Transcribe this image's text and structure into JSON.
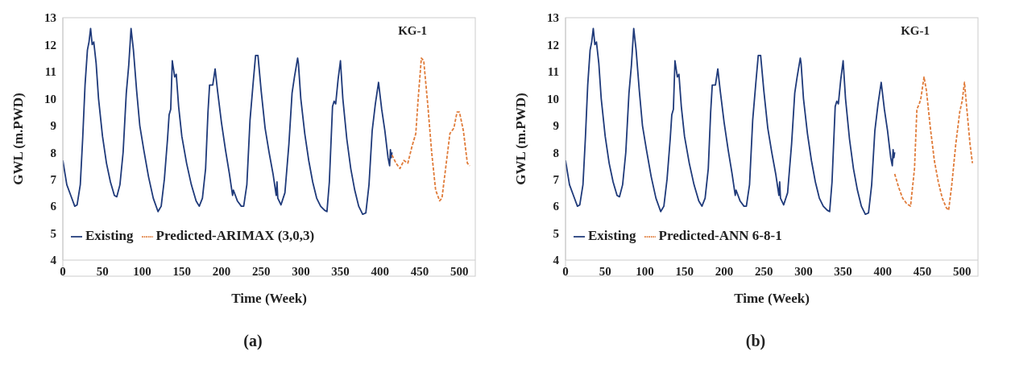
{
  "chart_data": [
    {
      "type": "line",
      "xlabel": "Time (Week)",
      "ylabel": "GWL (m.PWD)",
      "annotations": [
        "KG-1",
        "(a)"
      ],
      "xlim": [
        0,
        520
      ],
      "xticks": [
        0,
        50,
        100,
        150,
        200,
        250,
        300,
        350,
        400,
        450,
        500
      ],
      "ylim": [
        4,
        13
      ],
      "yticks": [
        4,
        5,
        6,
        7,
        8,
        9,
        10,
        11,
        12,
        13
      ],
      "legend": "bottom left",
      "series": [
        {
          "name": "Existing",
          "color": "#1f3a7a",
          "line_style": "solid",
          "x": [
            0,
            5,
            10,
            15,
            18,
            22,
            25,
            28,
            31,
            33,
            35,
            37,
            39,
            42,
            45,
            50,
            55,
            60,
            65,
            68,
            72,
            76,
            80,
            83,
            86,
            89,
            93,
            97,
            102,
            108,
            114,
            120,
            124,
            128,
            132,
            134,
            136,
            138,
            140,
            141,
            143,
            146,
            150,
            156,
            162,
            168,
            172,
            176,
            180,
            183,
            185,
            189,
            192,
            195,
            200,
            205,
            210,
            213,
            214,
            215,
            220,
            225,
            228,
            232,
            236,
            240,
            243,
            246,
            250,
            255,
            260,
            265,
            269,
            270,
            271,
            275,
            280,
            285,
            289,
            292,
            296,
            297,
            300,
            305,
            310,
            315,
            320,
            325,
            330,
            333,
            336,
            340,
            342,
            344,
            347,
            350,
            353,
            358,
            363,
            368,
            373,
            378,
            382,
            386,
            390,
            394,
            398,
            402,
            406,
            410,
            412,
            413,
            414,
            415
          ],
          "values": [
            7.7,
            6.8,
            6.4,
            6.0,
            6.05,
            6.8,
            8.5,
            10.5,
            11.8,
            12.1,
            12.6,
            12.0,
            12.1,
            11.3,
            10.0,
            8.6,
            7.6,
            6.9,
            6.4,
            6.35,
            6.8,
            8.0,
            10.2,
            11.2,
            12.6,
            11.8,
            10.3,
            9.0,
            8.1,
            7.1,
            6.3,
            5.8,
            6.0,
            7.0,
            8.5,
            9.4,
            9.6,
            11.4,
            11.0,
            10.8,
            10.9,
            9.7,
            8.6,
            7.6,
            6.8,
            6.2,
            6.0,
            6.3,
            7.4,
            9.5,
            10.5,
            10.5,
            11.1,
            10.3,
            9.1,
            8.1,
            7.2,
            6.6,
            6.4,
            6.6,
            6.2,
            6.0,
            6.0,
            6.8,
            9.2,
            10.6,
            11.6,
            11.6,
            10.3,
            8.9,
            8.0,
            7.2,
            6.4,
            6.9,
            6.3,
            6.05,
            6.5,
            8.3,
            10.2,
            10.8,
            11.5,
            11.3,
            10.0,
            8.7,
            7.7,
            6.9,
            6.3,
            6.0,
            5.85,
            5.8,
            6.9,
            9.7,
            9.9,
            9.8,
            10.7,
            11.4,
            10.0,
            8.5,
            7.4,
            6.6,
            6.0,
            5.7,
            5.75,
            6.8,
            8.8,
            9.8,
            10.6,
            9.6,
            8.8,
            7.8,
            7.5,
            8.1,
            7.8,
            8.0
          ]
        },
        {
          "name": "Predicted-ARIMAX (3,0,3)",
          "color": "#e07b39",
          "line_style": "dashed",
          "x": [
            415,
            420,
            425,
            430,
            435,
            440,
            445,
            448,
            452,
            455,
            460,
            465,
            470,
            475,
            478,
            483,
            488,
            493,
            497,
            500,
            505,
            510,
            513
          ],
          "values": [
            7.9,
            7.6,
            7.4,
            7.7,
            7.6,
            8.2,
            8.7,
            10.0,
            11.5,
            11.4,
            9.8,
            8.0,
            6.6,
            6.2,
            6.3,
            7.5,
            8.7,
            8.9,
            9.5,
            9.5,
            8.8,
            7.6,
            7.5
          ]
        }
      ]
    },
    {
      "type": "line",
      "xlabel": "Time (Week)",
      "ylabel": "GWL (m.PWD)",
      "annotations": [
        "KG-1",
        "(b)"
      ],
      "xlim": [
        0,
        520
      ],
      "xticks": [
        0,
        50,
        100,
        150,
        200,
        250,
        300,
        350,
        400,
        450,
        500
      ],
      "ylim": [
        4,
        13
      ],
      "yticks": [
        4,
        5,
        6,
        7,
        8,
        9,
        10,
        11,
        12,
        13
      ],
      "legend": "bottom left",
      "series": [
        {
          "name": "Existing",
          "color": "#1f3a7a",
          "line_style": "solid",
          "x": [
            0,
            5,
            10,
            15,
            18,
            22,
            25,
            28,
            31,
            33,
            35,
            37,
            39,
            42,
            45,
            50,
            55,
            60,
            65,
            68,
            72,
            76,
            80,
            83,
            86,
            89,
            93,
            97,
            102,
            108,
            114,
            120,
            124,
            128,
            132,
            134,
            136,
            138,
            140,
            141,
            143,
            146,
            150,
            156,
            162,
            168,
            172,
            176,
            180,
            183,
            185,
            189,
            192,
            195,
            200,
            205,
            210,
            213,
            214,
            215,
            220,
            225,
            228,
            232,
            236,
            240,
            243,
            246,
            250,
            255,
            260,
            265,
            269,
            270,
            271,
            275,
            280,
            285,
            289,
            292,
            296,
            297,
            300,
            305,
            310,
            315,
            320,
            325,
            330,
            333,
            336,
            340,
            342,
            344,
            347,
            350,
            353,
            358,
            363,
            368,
            373,
            378,
            382,
            386,
            390,
            394,
            398,
            402,
            406,
            410,
            412,
            413,
            414,
            415
          ],
          "values": [
            7.7,
            6.8,
            6.4,
            6.0,
            6.05,
            6.8,
            8.5,
            10.5,
            11.8,
            12.1,
            12.6,
            12.0,
            12.1,
            11.3,
            10.0,
            8.6,
            7.6,
            6.9,
            6.4,
            6.35,
            6.8,
            8.0,
            10.2,
            11.2,
            12.6,
            11.8,
            10.3,
            9.0,
            8.1,
            7.1,
            6.3,
            5.8,
            6.0,
            7.0,
            8.5,
            9.4,
            9.6,
            11.4,
            11.0,
            10.8,
            10.9,
            9.7,
            8.6,
            7.6,
            6.8,
            6.2,
            6.0,
            6.3,
            7.4,
            9.5,
            10.5,
            10.5,
            11.1,
            10.3,
            9.1,
            8.1,
            7.2,
            6.6,
            6.4,
            6.6,
            6.2,
            6.0,
            6.0,
            6.8,
            9.2,
            10.6,
            11.6,
            11.6,
            10.3,
            8.9,
            8.0,
            7.2,
            6.4,
            6.9,
            6.3,
            6.05,
            6.5,
            8.3,
            10.2,
            10.8,
            11.5,
            11.3,
            10.0,
            8.7,
            7.7,
            6.9,
            6.3,
            6.0,
            5.85,
            5.8,
            6.9,
            9.7,
            9.9,
            9.8,
            10.7,
            11.4,
            10.0,
            8.5,
            7.4,
            6.6,
            6.0,
            5.7,
            5.75,
            6.8,
            8.8,
            9.8,
            10.6,
            9.6,
            8.8,
            7.8,
            7.5,
            8.1,
            7.8,
            8.0
          ]
        },
        {
          "name": "Predicted-ANN 6-8-1",
          "color": "#e07b39",
          "line_style": "dashed",
          "x": [
            415,
            420,
            425,
            430,
            435,
            440,
            443,
            446,
            448,
            452,
            455,
            460,
            465,
            470,
            475,
            480,
            483,
            487,
            492,
            497,
            500,
            503,
            506,
            510,
            513
          ],
          "values": [
            7.2,
            6.7,
            6.3,
            6.1,
            6.0,
            7.4,
            9.6,
            9.8,
            10.0,
            10.8,
            10.3,
            8.9,
            7.7,
            6.9,
            6.3,
            5.95,
            5.85,
            6.8,
            8.3,
            9.5,
            9.9,
            10.6,
            9.6,
            8.3,
            7.6
          ]
        }
      ]
    }
  ]
}
